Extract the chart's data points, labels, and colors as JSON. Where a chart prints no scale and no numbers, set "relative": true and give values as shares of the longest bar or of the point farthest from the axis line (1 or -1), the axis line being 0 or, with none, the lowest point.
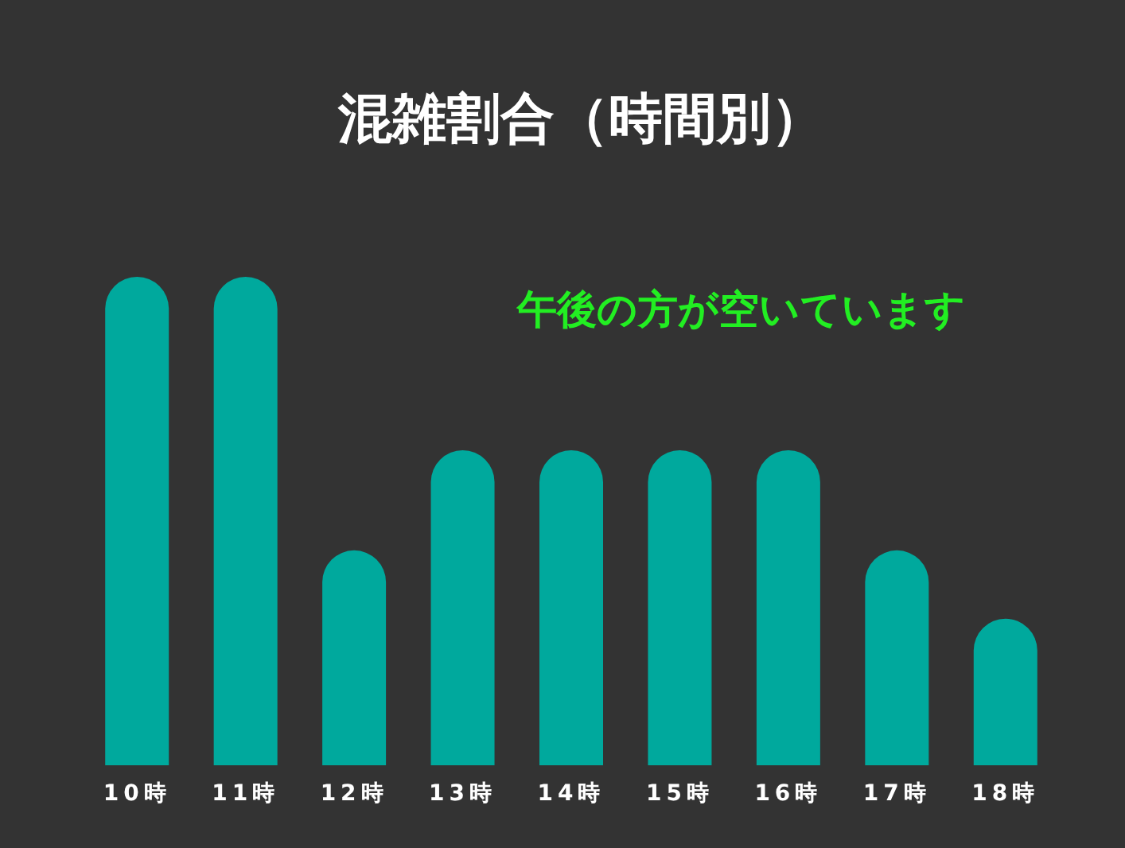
{
  "chart_data": {
    "type": "bar",
    "title": "混雑割合（時間別）",
    "annotations": [
      "午後の方が空いています"
    ],
    "categories": [
      "10時",
      "11時",
      "12時",
      "13時",
      "14時",
      "15時",
      "16時",
      "17時",
      "18時"
    ],
    "values": [
      1,
      1,
      0.44,
      0.645,
      0.645,
      0.645,
      0.645,
      0.44,
      0.3
    ],
    "color": "#00a99d",
    "relative": true
  }
}
